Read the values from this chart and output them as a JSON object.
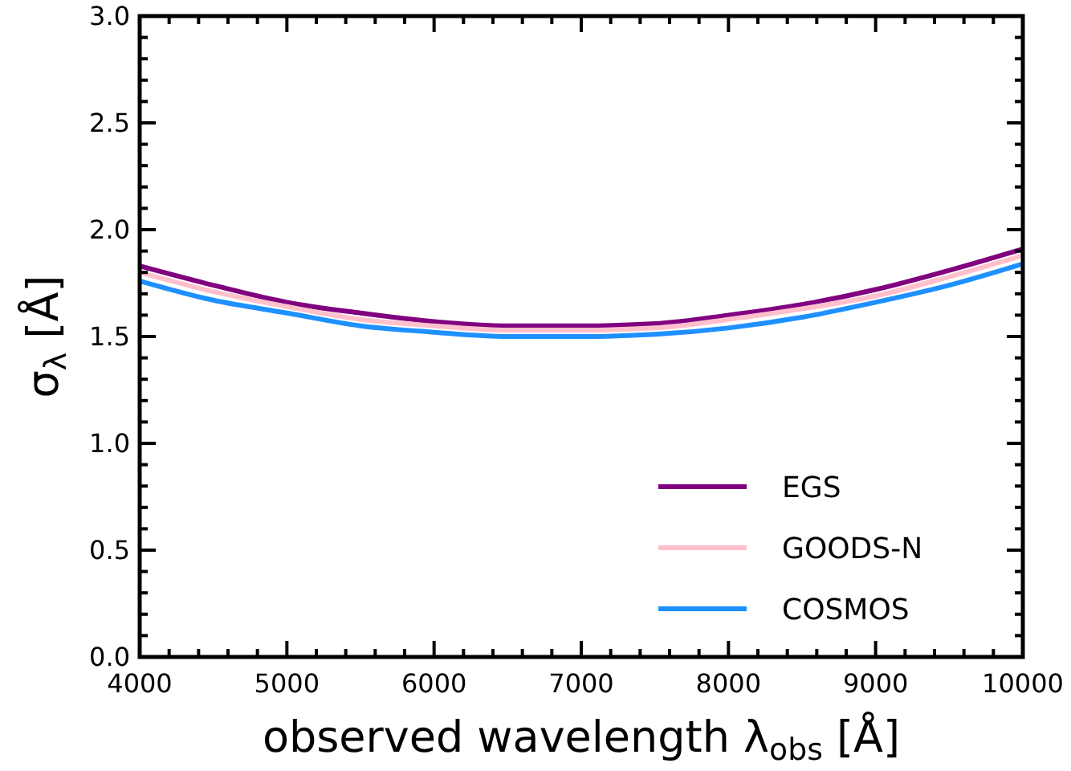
{
  "chart_data": {
    "type": "line",
    "xlabel": "observed wavelength λ$_{obs}$ [Å]",
    "ylabel": "σ$_{λ}$ [Å]",
    "x": [
      4000,
      4500,
      5000,
      5500,
      6000,
      6500,
      7000,
      7500,
      8000,
      8500,
      9000,
      9500,
      10000
    ],
    "xlim": [
      4000,
      10000
    ],
    "ylim": [
      0,
      3
    ],
    "xticks": [
      4000,
      {
        "value": 4200,
        "label": null
      },
      {
        "value": 4400,
        "label": null
      },
      {
        "value": 4600,
        "label": null
      },
      {
        "value": 4800,
        "label": null
      },
      5000,
      {
        "value": 5200,
        "label": null
      },
      {
        "value": 5400,
        "label": null
      },
      {
        "value": 5600,
        "label": null
      },
      {
        "value": 5800,
        "label": null
      },
      6000,
      {
        "value": 6200,
        "label": null
      },
      {
        "value": 6400,
        "label": null
      },
      {
        "value": 6600,
        "label": null
      },
      {
        "value": 6800,
        "label": null
      },
      7000,
      {
        "value": 7200,
        "label": null
      },
      {
        "value": 7400,
        "label": null
      },
      {
        "value": 7600,
        "label": null
      },
      {
        "value": 7800,
        "label": null
      },
      8000,
      {
        "value": 8200,
        "label": null
      },
      {
        "value": 8400,
        "label": null
      },
      {
        "value": 8600,
        "label": null
      },
      {
        "value": 8800,
        "label": null
      },
      9000,
      {
        "value": 9200,
        "label": null
      },
      {
        "value": 9400,
        "label": null
      },
      {
        "value": 9600,
        "label": null
      },
      {
        "value": 9800,
        "label": null
      },
      10000
    ],
    "yticks": [
      {
        "value": 0,
        "label": "0.0"
      },
      {
        "value": 0.1,
        "label": null
      },
      {
        "value": 0.2,
        "label": null
      },
      {
        "value": 0.3,
        "label": null
      },
      {
        "value": 0.4,
        "label": null
      },
      {
        "value": 0.5,
        "label": "0.5"
      },
      {
        "value": 0.6,
        "label": null
      },
      {
        "value": 0.7,
        "label": null
      },
      {
        "value": 0.8,
        "label": null
      },
      {
        "value": 0.9,
        "label": null
      },
      {
        "value": 1,
        "label": "1.0"
      },
      {
        "value": 1.1,
        "label": null
      },
      {
        "value": 1.2,
        "label": null
      },
      {
        "value": 1.3,
        "label": null
      },
      {
        "value": 1.4,
        "label": null
      },
      {
        "value": 1.5,
        "label": "1.5"
      },
      {
        "value": 1.6,
        "label": null
      },
      {
        "value": 1.7,
        "label": null
      },
      {
        "value": 1.8,
        "label": null
      },
      {
        "value": 1.9,
        "label": null
      },
      {
        "value": 2,
        "label": "2.0"
      },
      {
        "value": 2.1,
        "label": null
      },
      {
        "value": 2.2,
        "label": null
      },
      {
        "value": 2.3,
        "label": null
      },
      {
        "value": 2.4,
        "label": null
      },
      {
        "value": 2.5,
        "label": "2.5"
      },
      {
        "value": 2.6,
        "label": null
      },
      {
        "value": 2.7,
        "label": null
      },
      {
        "value": 2.8,
        "label": null
      },
      {
        "value": 2.9,
        "label": null
      },
      {
        "value": 3,
        "label": "3.0"
      }
    ],
    "legend": "bottom right",
    "marker": "none",
    "line_style": "solid",
    "series": [
      {
        "name": "EGS",
        "color": "#800080",
        "values": [
          1.83,
          1.74,
          1.66,
          1.61,
          1.57,
          1.55,
          1.55,
          1.56,
          1.6,
          1.65,
          1.72,
          1.81,
          1.91
        ]
      },
      {
        "name": "GOODS-N",
        "color": "#ffc0cb",
        "values": [
          1.8,
          1.71,
          1.64,
          1.58,
          1.55,
          1.53,
          1.53,
          1.54,
          1.58,
          1.63,
          1.69,
          1.78,
          1.88
        ]
      },
      {
        "name": "COSMOS",
        "color": "#1e90ff",
        "values": [
          1.76,
          1.67,
          1.61,
          1.55,
          1.52,
          1.5,
          1.5,
          1.51,
          1.54,
          1.59,
          1.66,
          1.74,
          1.84
        ]
      }
    ]
  }
}
